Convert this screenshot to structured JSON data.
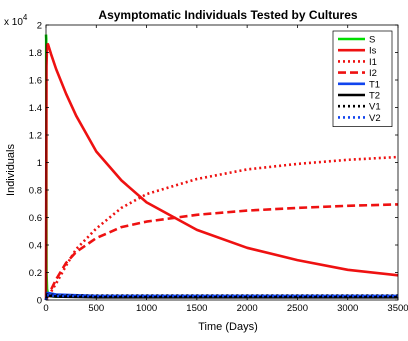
{
  "chart_data": {
    "type": "line",
    "title": "Asymptomatic Individuals Tested by Cultures",
    "xlabel": "Time (Days)",
    "ylabel": "Individuals",
    "xlim": [
      0,
      3500
    ],
    "ylim": [
      0,
      20000
    ],
    "y_multiplier_label": "x 10",
    "y_multiplier_exponent": "4",
    "x_ticks": [
      0,
      500,
      1000,
      1500,
      2000,
      2500,
      3000,
      3500
    ],
    "x_tick_labels": [
      "0",
      "500",
      "1000",
      "1500",
      "2000",
      "2500",
      "3000",
      "3500"
    ],
    "y_ticks": [
      0,
      2000,
      4000,
      6000,
      8000,
      10000,
      12000,
      14000,
      16000,
      18000,
      20000
    ],
    "y_tick_labels": [
      "0",
      "0.2",
      "0.4",
      "0.6",
      "0.8",
      "1",
      "1.2",
      "1.4",
      "1.6",
      "1.8",
      "2"
    ],
    "grid": false,
    "legend_position": "top-right",
    "series": [
      {
        "name": "S",
        "color": "#00dd00",
        "dash": "solid",
        "x": [
          0,
          2,
          5,
          10,
          20,
          40,
          100,
          500,
          1000,
          2000,
          3500
        ],
        "y": [
          19300,
          19000,
          2000,
          800,
          400,
          300,
          250,
          250,
          250,
          250,
          250
        ]
      },
      {
        "name": "Is",
        "color": "#ee1111",
        "dash": "solid",
        "x": [
          0,
          5,
          10,
          20,
          50,
          100,
          200,
          300,
          500,
          750,
          1000,
          1500,
          2000,
          2500,
          3000,
          3500
        ],
        "y": [
          0,
          17000,
          18500,
          18600,
          17900,
          16800,
          15000,
          13400,
          10800,
          8700,
          7100,
          5100,
          3800,
          2900,
          2200,
          1800
        ]
      },
      {
        "name": "I1",
        "color": "#ee1111",
        "dash": "dot",
        "x": [
          0,
          100,
          200,
          300,
          500,
          750,
          1000,
          1500,
          2000,
          2500,
          3000,
          3500
        ],
        "y": [
          0,
          1200,
          2500,
          3700,
          5200,
          6700,
          7700,
          8800,
          9500,
          9900,
          10200,
          10400
        ]
      },
      {
        "name": "I2",
        "color": "#ee1111",
        "dash": "dash",
        "x": [
          0,
          100,
          200,
          300,
          500,
          750,
          1000,
          1500,
          2000,
          2500,
          3000,
          3500
        ],
        "y": [
          0,
          1500,
          2700,
          3500,
          4500,
          5300,
          5700,
          6200,
          6500,
          6700,
          6850,
          6950
        ]
      },
      {
        "name": "T1",
        "color": "#1144ee",
        "dash": "solid",
        "x": [
          0,
          10,
          30,
          100,
          500,
          1000,
          2000,
          3500
        ],
        "y": [
          0,
          500,
          500,
          400,
          300,
          300,
          300,
          300
        ]
      },
      {
        "name": "T2",
        "color": "#000000",
        "dash": "solid",
        "x": [
          0,
          10,
          30,
          100,
          500,
          1000,
          2000,
          3500
        ],
        "y": [
          0,
          300,
          300,
          250,
          200,
          200,
          200,
          200
        ]
      },
      {
        "name": "V1",
        "color": "#000000",
        "dash": "dot",
        "x": [
          0,
          10,
          30,
          100,
          500,
          1000,
          2000,
          3500
        ],
        "y": [
          0,
          400,
          400,
          350,
          320,
          320,
          320,
          320
        ]
      },
      {
        "name": "V2",
        "color": "#1144ee",
        "dash": "dot",
        "x": [
          0,
          10,
          30,
          100,
          500,
          1000,
          2000,
          3500
        ],
        "y": [
          0,
          350,
          350,
          300,
          280,
          280,
          280,
          280
        ]
      }
    ]
  }
}
